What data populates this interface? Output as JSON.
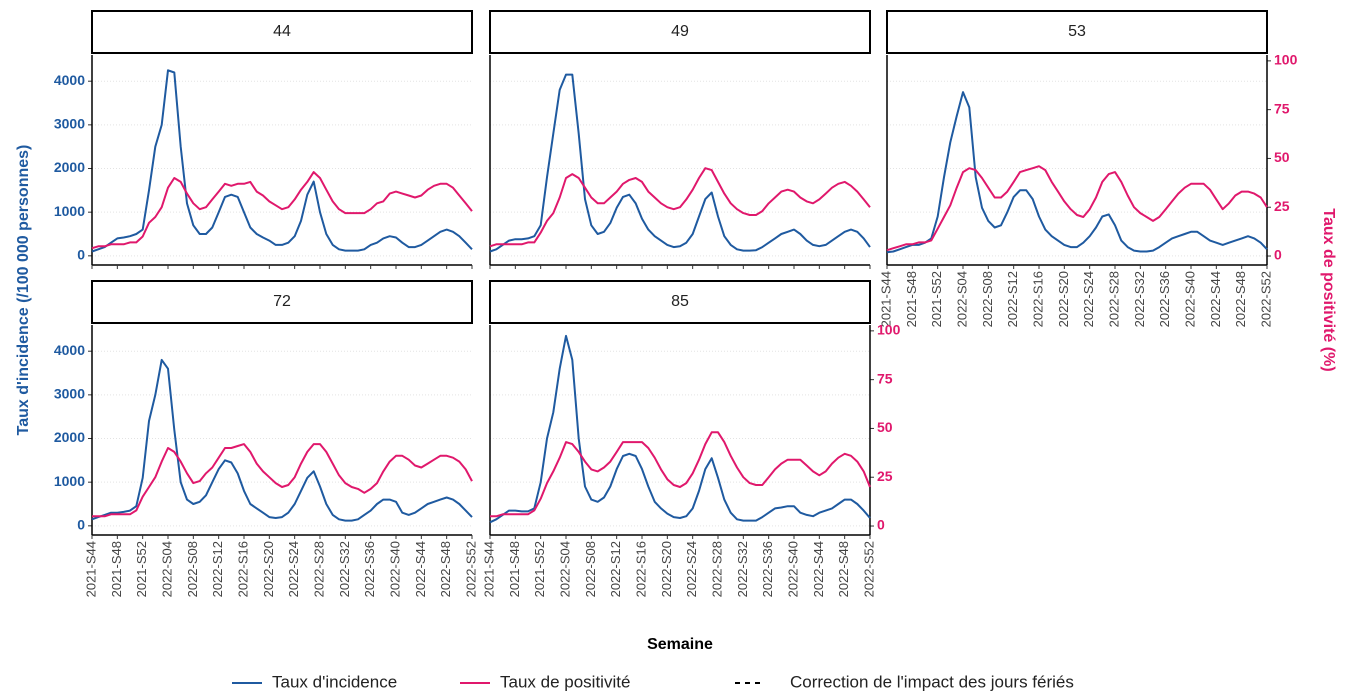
{
  "chart_data": {
    "type": "facet-line",
    "x_label": "Semaine",
    "y_label": "Taux d'incidence (/100 000 personnes)",
    "y2_label": "Taux de positivité (%)",
    "legend": [
      {
        "name": "Taux d'incidence",
        "color": "#1f5aa0"
      },
      {
        "name": "Taux de positivité",
        "color": "#e0186c"
      },
      {
        "name": "Correction de l'impact des jours fériés",
        "color": "#000000",
        "dashed": true
      }
    ],
    "categories": [
      "2021-S44",
      null,
      null,
      null,
      "2021-S48",
      null,
      null,
      null,
      "2021-S52",
      null,
      null,
      null,
      "2022-S04",
      null,
      null,
      null,
      "2022-S08",
      null,
      null,
      null,
      "2022-S12",
      null,
      null,
      null,
      "2022-S16",
      null,
      null,
      null,
      "2022-S20",
      null,
      null,
      null,
      "2022-S24",
      null,
      null,
      null,
      "2022-S28",
      null,
      null,
      null,
      "2022-S32",
      null,
      null,
      null,
      "2022-S36",
      null,
      null,
      null,
      "2022-S40",
      null,
      null,
      null,
      "2022-S44",
      null,
      null,
      null,
      "2022-S48",
      null,
      null,
      null,
      "2022-S52"
    ],
    "ylim": [
      -210,
      4600
    ],
    "yticks": [
      0,
      1000,
      2000,
      3000,
      4000
    ],
    "y2lim": [
      -4.6,
      103
    ],
    "y2ticks": [
      0,
      25,
      50,
      75,
      100
    ],
    "grid": true,
    "panels": [
      {
        "title": "44",
        "series": [
          {
            "values": [
              100,
              150,
              200,
              300,
              400,
              420,
              450,
              500,
              600,
              1500,
              2500,
              3000,
              4250,
              4200,
              2500,
              1200,
              700,
              500,
              500,
              650,
              1000,
              1350,
              1400,
              1350,
              1000,
              650,
              500,
              420,
              350,
              250,
              250,
              300,
              450,
              800,
              1400,
              1700,
              1000,
              500,
              250,
              150,
              120,
              120,
              120,
              150,
              250,
              300,
              400,
              450,
              420,
              300,
              200,
              200,
              250,
              350,
              450,
              550,
              600,
              550,
              450,
              300,
              150
            ]
          },
          {
            "axis": "y2",
            "values": [
              4,
              5,
              5,
              6,
              6,
              6,
              7,
              7,
              10,
              17,
              20,
              25,
              35,
              40,
              38,
              32,
              27,
              24,
              25,
              29,
              33,
              37,
              36,
              37,
              37,
              38,
              33,
              31,
              28,
              26,
              24,
              25,
              29,
              34,
              38,
              43,
              40,
              34,
              28,
              24,
              22,
              22,
              22,
              22,
              24,
              27,
              28,
              32,
              33,
              32,
              31,
              30,
              31,
              34,
              36,
              37,
              37,
              35,
              31,
              27,
              23
            ]
          }
        ]
      },
      {
        "title": "49",
        "series": [
          {
            "values": [
              100,
              150,
              250,
              350,
              380,
              380,
              400,
              450,
              700,
              1800,
              2800,
              3800,
              4150,
              4150,
              2800,
              1300,
              700,
              500,
              550,
              750,
              1100,
              1350,
              1400,
              1200,
              850,
              600,
              450,
              350,
              250,
              200,
              220,
              300,
              500,
              900,
              1300,
              1450,
              900,
              450,
              250,
              150,
              120,
              120,
              130,
              200,
              300,
              400,
              500,
              550,
              600,
              500,
              350,
              250,
              220,
              250,
              350,
              450,
              550,
              600,
              550,
              400,
              200
            ]
          },
          {
            "axis": "y2",
            "values": [
              5,
              6,
              6,
              6,
              6,
              6,
              7,
              7,
              12,
              18,
              22,
              30,
              40,
              42,
              40,
              35,
              30,
              27,
              27,
              30,
              33,
              37,
              39,
              40,
              38,
              33,
              30,
              27,
              25,
              24,
              25,
              29,
              34,
              40,
              45,
              44,
              38,
              32,
              27,
              24,
              22,
              21,
              21,
              23,
              27,
              30,
              33,
              34,
              33,
              30,
              28,
              27,
              29,
              32,
              35,
              37,
              38,
              36,
              33,
              29,
              25
            ]
          }
        ]
      },
      {
        "title": "53",
        "series": [
          {
            "values": [
              80,
              100,
              150,
              200,
              250,
              250,
              300,
              400,
              900,
              1800,
              2600,
              3200,
              3750,
              3400,
              1800,
              1100,
              800,
              650,
              700,
              1000,
              1350,
              1500,
              1500,
              1300,
              900,
              600,
              450,
              350,
              250,
              200,
              200,
              300,
              450,
              650,
              900,
              950,
              700,
              350,
              200,
              120,
              100,
              100,
              120,
              200,
              300,
              400,
              450,
              500,
              550,
              550,
              450,
              350,
              300,
              250,
              300,
              350,
              400,
              450,
              400,
              300,
              150
            ]
          },
          {
            "axis": "y2",
            "values": [
              3,
              4,
              5,
              6,
              6,
              7,
              7,
              8,
              14,
              20,
              26,
              35,
              43,
              45,
              44,
              40,
              35,
              30,
              30,
              33,
              38,
              43,
              44,
              45,
              46,
              44,
              38,
              33,
              28,
              24,
              21,
              20,
              24,
              30,
              38,
              42,
              43,
              38,
              31,
              25,
              22,
              20,
              18,
              20,
              24,
              28,
              32,
              35,
              37,
              37,
              37,
              34,
              29,
              24,
              27,
              31,
              33,
              33,
              32,
              30,
              25
            ]
          }
        ]
      },
      {
        "title": "72",
        "series": [
          {
            "values": [
              150,
              200,
              250,
              300,
              300,
              320,
              350,
              450,
              1100,
              2400,
              3000,
              3800,
              3600,
              2200,
              1000,
              600,
              500,
              550,
              700,
              1000,
              1300,
              1500,
              1450,
              1200,
              800,
              500,
              400,
              300,
              200,
              180,
              200,
              300,
              500,
              800,
              1100,
              1250,
              900,
              500,
              250,
              150,
              120,
              120,
              150,
              250,
              350,
              500,
              600,
              600,
              550,
              300,
              250,
              300,
              400,
              500,
              550,
              600,
              650,
              600,
              500,
              350,
              200
            ]
          },
          {
            "axis": "y2",
            "values": [
              5,
              5,
              5,
              6,
              6,
              6,
              6,
              8,
              15,
              20,
              25,
              33,
              40,
              38,
              33,
              27,
              22,
              23,
              27,
              30,
              35,
              40,
              40,
              41,
              42,
              38,
              32,
              28,
              25,
              22,
              20,
              21,
              25,
              32,
              38,
              42,
              42,
              38,
              32,
              26,
              22,
              20,
              19,
              17,
              19,
              22,
              28,
              33,
              36,
              36,
              34,
              31,
              30,
              32,
              34,
              36,
              36,
              35,
              33,
              29,
              23
            ]
          }
        ]
      },
      {
        "title": "85",
        "series": [
          {
            "values": [
              80,
              150,
              250,
              350,
              350,
              330,
              330,
              400,
              1000,
              2000,
              2600,
              3600,
              4350,
              3800,
              2000,
              900,
              600,
              550,
              650,
              900,
              1300,
              1600,
              1650,
              1600,
              1300,
              900,
              550,
              400,
              280,
              200,
              180,
              220,
              400,
              800,
              1300,
              1550,
              1100,
              600,
              300,
              150,
              120,
              120,
              120,
              200,
              300,
              400,
              420,
              450,
              450,
              300,
              250,
              220,
              300,
              350,
              400,
              500,
              600,
              600,
              500,
              350,
              180
            ]
          },
          {
            "axis": "y2",
            "values": [
              5,
              5,
              6,
              6,
              6,
              6,
              6,
              8,
              14,
              22,
              28,
              35,
              43,
              42,
              38,
              33,
              29,
              28,
              30,
              33,
              38,
              43,
              43,
              43,
              43,
              40,
              35,
              29,
              24,
              21,
              20,
              22,
              27,
              34,
              42,
              48,
              48,
              43,
              36,
              30,
              25,
              22,
              21,
              21,
              25,
              29,
              32,
              34,
              34,
              34,
              31,
              28,
              26,
              28,
              32,
              35,
              37,
              36,
              33,
              28,
              20
            ]
          }
        ]
      }
    ]
  }
}
